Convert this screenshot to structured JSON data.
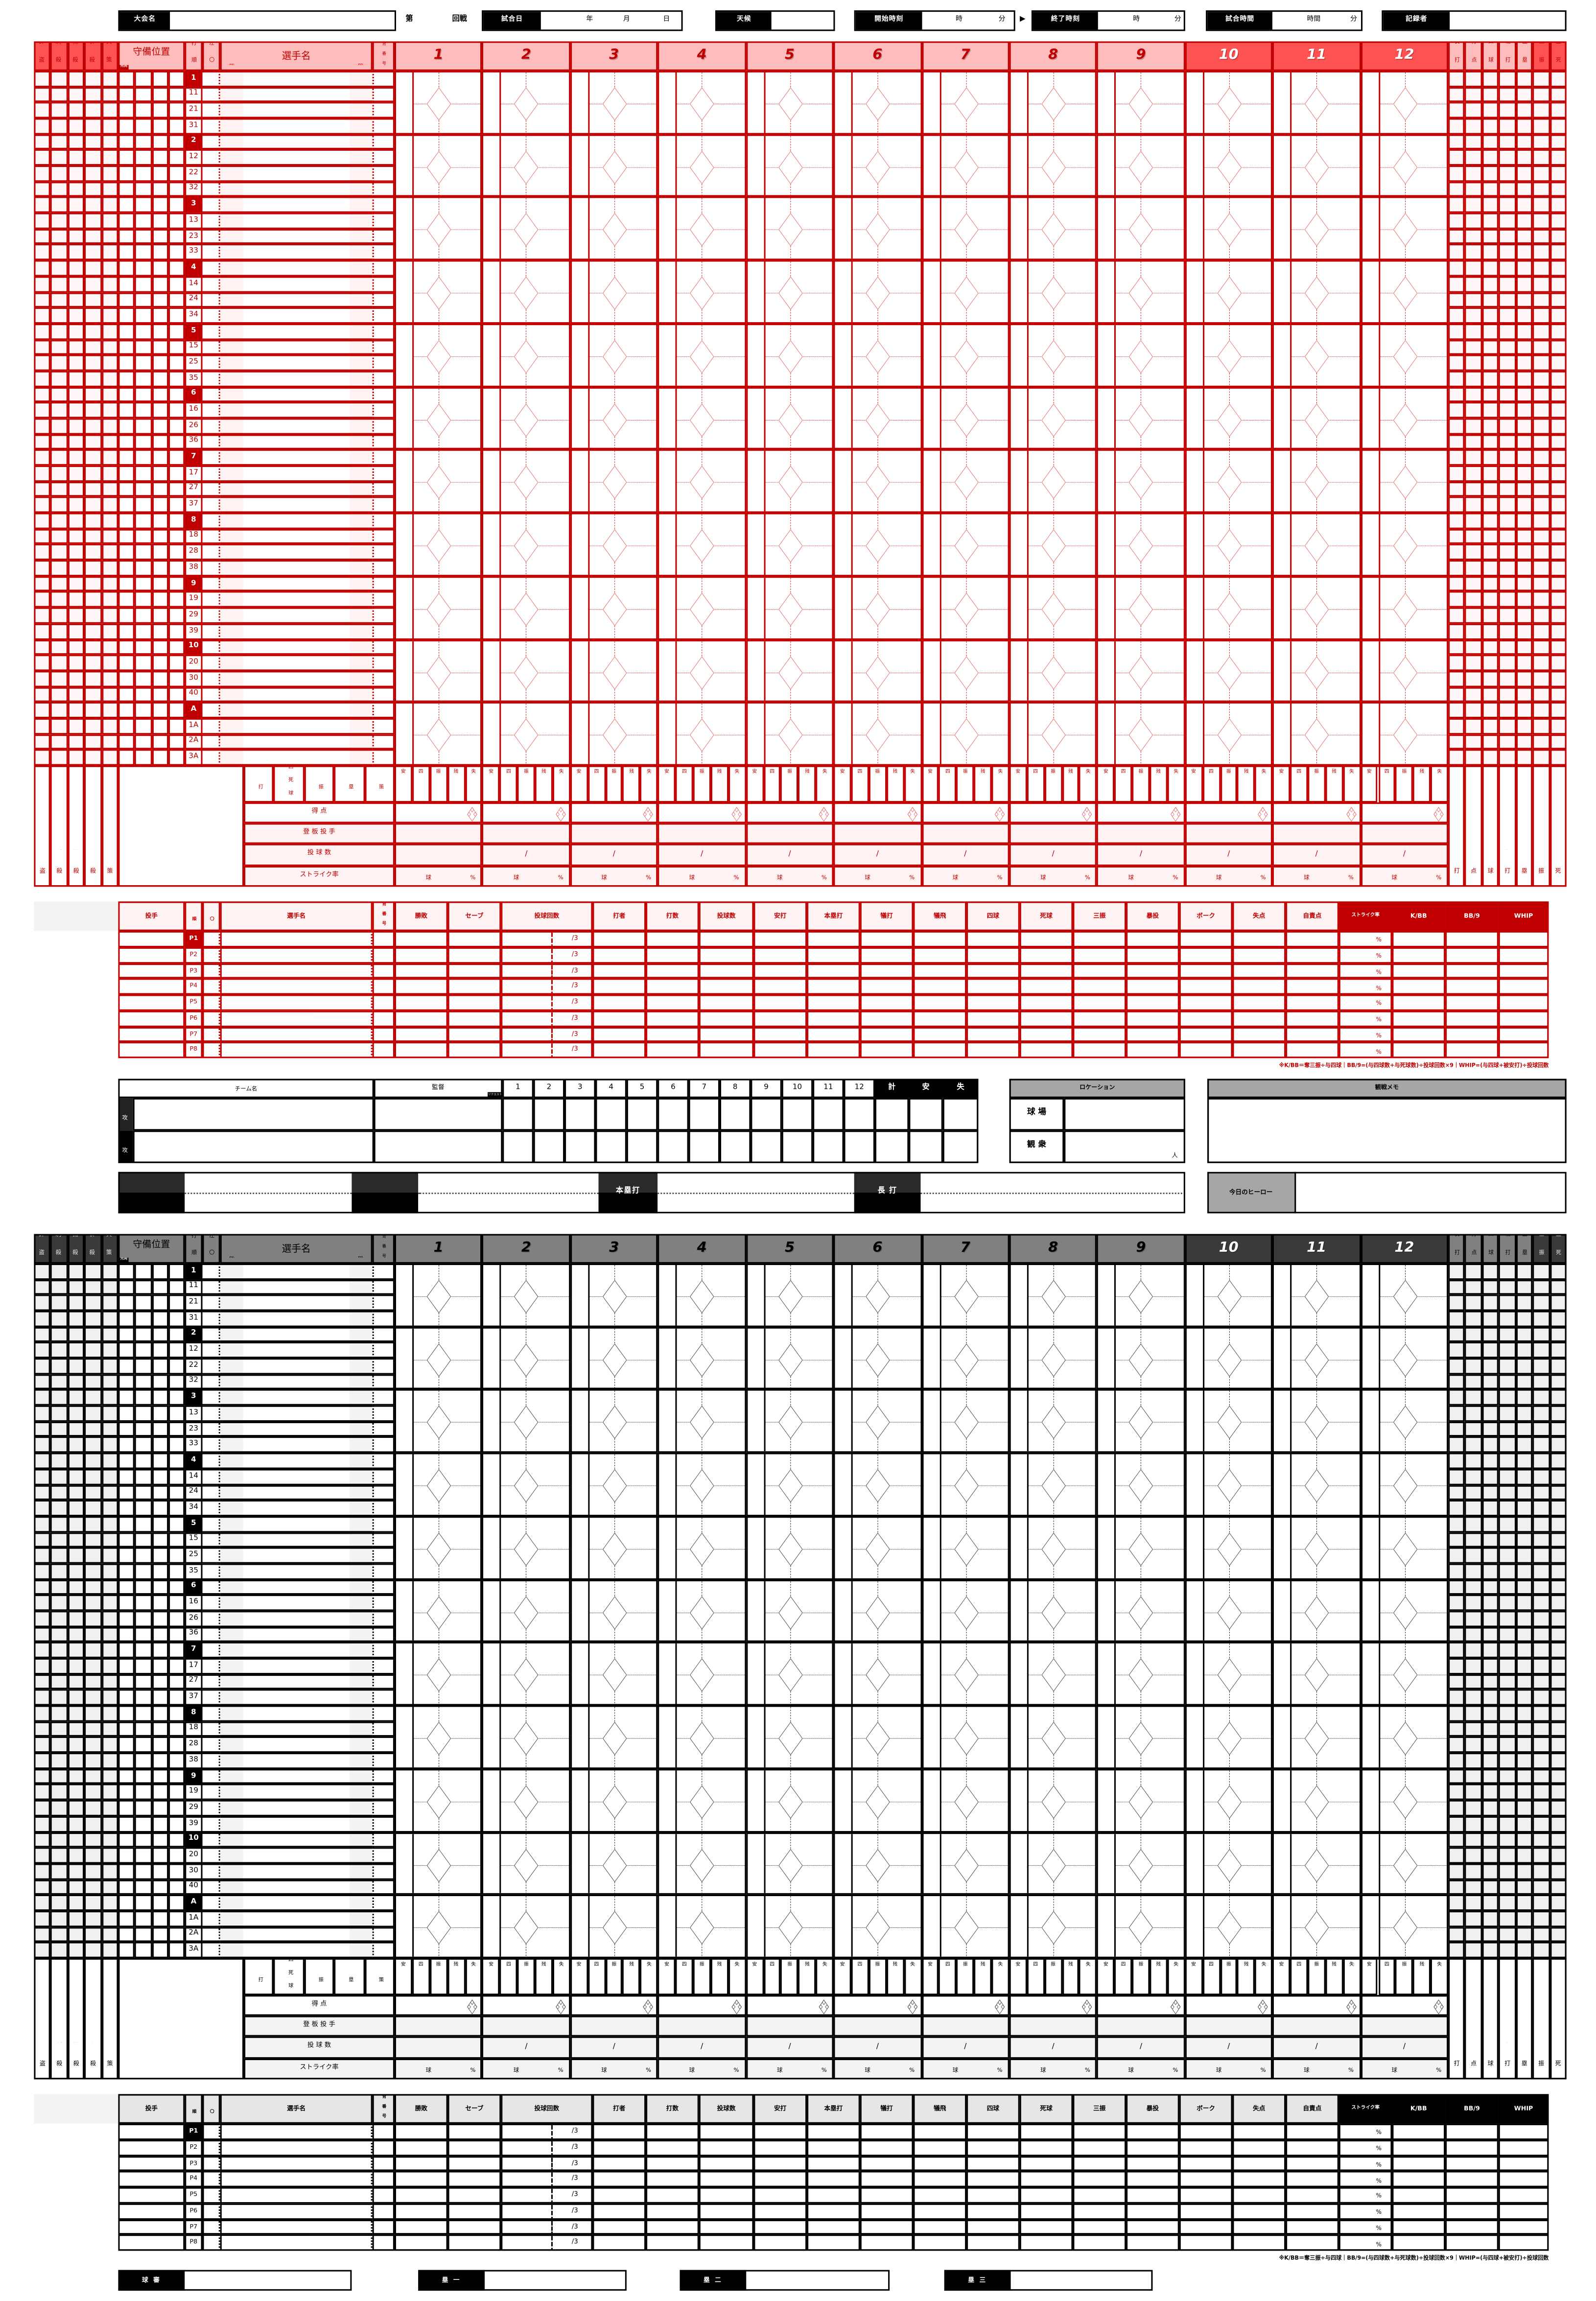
{
  "header": {
    "tournament_label": "大会名",
    "dai": "第",
    "round_suffix": "回戦",
    "date_label": "試合日",
    "year": "年",
    "month": "月",
    "day": "日",
    "weather_label": "天候",
    "start_label": "開始時刻",
    "hour": "時",
    "minute": "分",
    "arrow": "▶",
    "end_label": "終了時刻",
    "duration_label": "試合時間",
    "hours": "時間",
    "recorder_label": "記録者"
  },
  "scoresheet": {
    "left_stats": [
      "許盗",
      "刺殺",
      "捕殺",
      "併殺",
      "失策"
    ],
    "position_label": "守備位置",
    "starter_badge": "先発",
    "order_label": "打順",
    "hand_label": "左〇",
    "player_label": "選手名",
    "av_label": "AV.",
    "hr_label": "HR",
    "number_label": "背番号",
    "innings": [
      "1",
      "2",
      "3",
      "4",
      "5",
      "6",
      "7",
      "8",
      "9",
      "10",
      "11",
      "12"
    ],
    "right_stats": [
      "安打",
      "打点",
      "四球",
      "犠打",
      "盗塁",
      "三振",
      "盗死"
    ],
    "batting_order": [
      [
        "1",
        "11",
        "21",
        "31"
      ],
      [
        "2",
        "12",
        "22",
        "32"
      ],
      [
        "3",
        "13",
        "23",
        "33"
      ],
      [
        "4",
        "14",
        "24",
        "34"
      ],
      [
        "5",
        "15",
        "25",
        "35"
      ],
      [
        "6",
        "16",
        "26",
        "36"
      ],
      [
        "7",
        "17",
        "27",
        "37"
      ],
      [
        "8",
        "18",
        "28",
        "38"
      ],
      [
        "9",
        "19",
        "29",
        "39"
      ],
      [
        "10",
        "20",
        "30",
        "40"
      ],
      [
        "A",
        "1A",
        "2A",
        "3A"
      ]
    ],
    "inning_stats_header": [
      "安打",
      "四死球",
      "三振",
      "残塁",
      "失策"
    ],
    "inning_stats_short": [
      "安",
      "四",
      "振",
      "残",
      "失"
    ],
    "runs_label": "得 点",
    "pitcher_label": "登 板 投 手",
    "pitch_count_label": "投 球 数",
    "strike_label": "ストライク率",
    "ball_unit": "球",
    "percent": "%",
    "slash": "/"
  },
  "pitching": {
    "headers": [
      "投手",
      "投順",
      "左〇",
      "選手名",
      "背番号",
      "勝敗",
      "セーブ",
      "投球回数",
      "打者",
      "打数",
      "投球数",
      "安打",
      "本塁打",
      "犠打",
      "犠飛",
      "四球",
      "死球",
      "三振",
      "暴投",
      "ボーク",
      "失点",
      "自責点",
      "ストライク率",
      "K/BB",
      "BB/9",
      "WHIP"
    ],
    "rows": [
      "P1",
      "P2",
      "P3",
      "P4",
      "P5",
      "P6",
      "P7",
      "P8"
    ],
    "innings_suffix": "/3",
    "percent": "%",
    "note": "※K/BB＝奪三振÷与四球｜BB/9=(与四球数+与死球数)÷投球回数×9｜WHIP=(与四球+被安打)÷投球回数"
  },
  "scoreboard": {
    "team_label": "チーム名",
    "manager_label": "監督",
    "request_badge": "リクエスト",
    "innings": [
      "1",
      "2",
      "3",
      "4",
      "5",
      "6",
      "7",
      "8",
      "9",
      "10",
      "11",
      "12"
    ],
    "totals": [
      "計",
      "安",
      "失"
    ],
    "top_label": "先攻",
    "bottom_label": "後攻"
  },
  "location": {
    "title": "ロケーション",
    "stadium_label": "球 場",
    "attendance_label": "観 衆",
    "person_unit": "人"
  },
  "memo": {
    "title": "観戦メモ"
  },
  "homeruns": {
    "hr_label": "本塁打",
    "xbh_label": "長 打"
  },
  "hero": {
    "label": "今日のヒーロー"
  },
  "umpires": [
    "球 審",
    "塁 一",
    "塁 二",
    "塁 三"
  ],
  "theme": {
    "red": {
      "line": "#c00000",
      "head": "#ffbcbc",
      "dark": "#ff5252",
      "darkText": "#c00000",
      "innText": "#c00000",
      "innDarkText": "#ffffff",
      "rDarkText": "#c00000",
      "cell": "#fff7f7",
      "shade": "#fff2f2",
      "badge": "#c00000",
      "diamond": "#e87878",
      "text": "#c00000",
      "pHead": "#fff2f2",
      "pText": "#c00000",
      "pLast": "#c00000",
      "note": "#c00000"
    },
    "mono": {
      "line": "#000000",
      "head": "#808080",
      "dark": "#3a3a3a",
      "darkText": "#e6e6e6",
      "innText": "#000000",
      "innDarkText": "#ffffff",
      "rDarkText": "#e6e6e6",
      "cell": "#f0f0f0",
      "shade": "#f3f3f3",
      "badge": "#000000",
      "diamond": "#555555",
      "text": "#000000",
      "pHead": "#e6e6e6",
      "pText": "#000000",
      "pLast": "#000000",
      "note": "#000000"
    },
    "panel_gray": "#a6a6a6"
  }
}
